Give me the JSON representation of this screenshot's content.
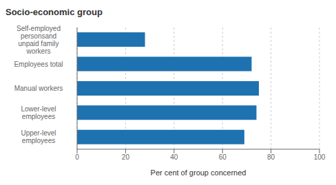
{
  "chart_data": {
    "type": "bar",
    "orientation": "horizontal",
    "title": "Socio-economic group",
    "xlabel": "Per cent of group concerned",
    "categories": [
      "Upper-level\nemployees",
      "Lower-level\nemployees",
      "Manual workers",
      "Employees total",
      "Self-employed\npersonsand\nunpaid family\nworkers"
    ],
    "values": [
      69,
      74,
      75,
      72,
      28
    ],
    "color": "#1F72B0",
    "xlim": [
      0,
      100
    ],
    "xticks": [
      0,
      20,
      40,
      60,
      80,
      100
    ],
    "grid": true
  }
}
